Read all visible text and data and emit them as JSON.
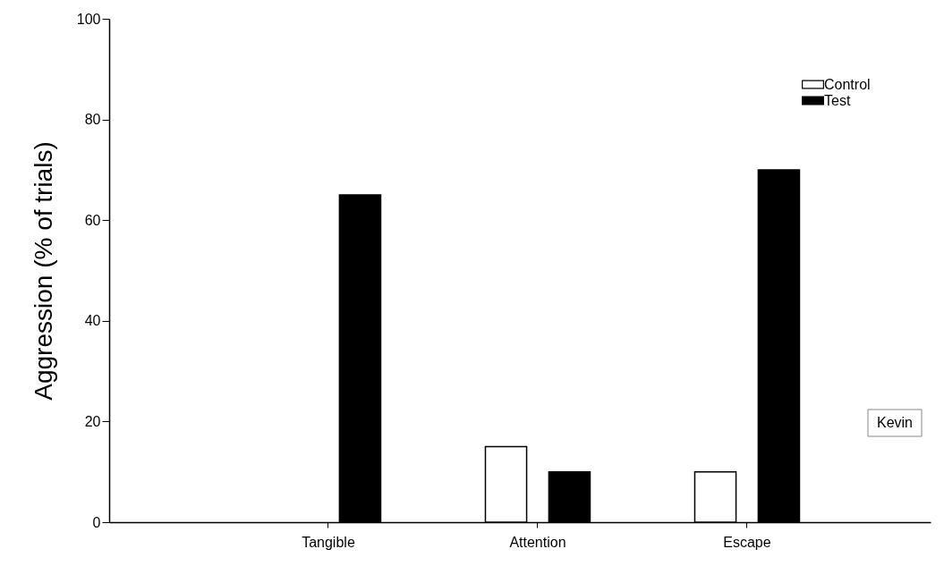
{
  "chart_data": {
    "type": "bar",
    "ylabel": "Aggression (% of trials)",
    "categories": [
      "Tangible",
      "Attention",
      "Escape"
    ],
    "series": [
      {
        "name": "Control",
        "color": "#ffffff",
        "values": [
          null,
          15,
          10
        ]
      },
      {
        "name": "Test",
        "color": "#000000",
        "values": [
          65,
          10,
          70
        ]
      }
    ],
    "ylim": [
      0,
      100
    ],
    "yticks": [
      0,
      20,
      40,
      60,
      80,
      100
    ],
    "legend": "top right",
    "annotations": [
      "Kevin"
    ]
  }
}
